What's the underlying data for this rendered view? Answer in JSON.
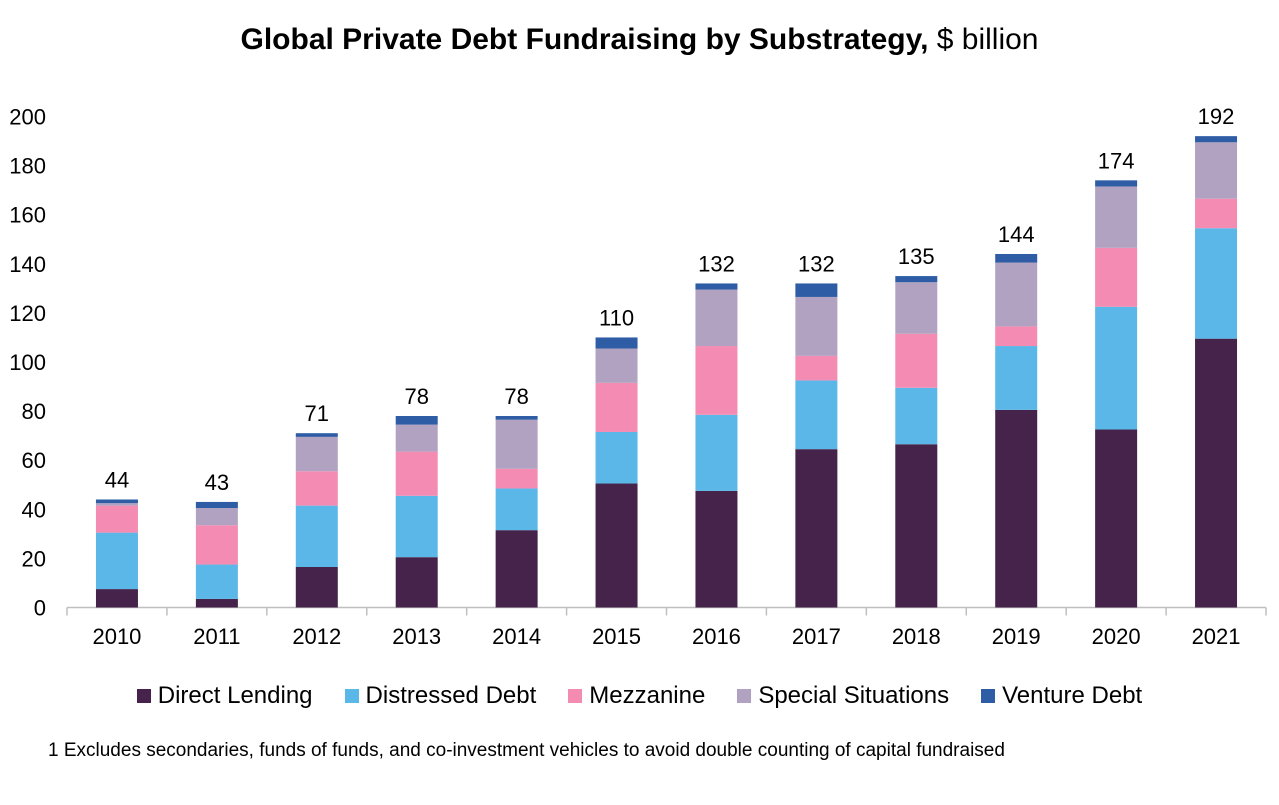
{
  "title": {
    "main": "Global Private Debt Fundraising by Substrategy,",
    "unit": " $ billion"
  },
  "footnote": "1 Excludes secondaries, funds of funds, and co-investment vehicles to avoid double counting of capital fundraised",
  "chart_data": {
    "type": "bar",
    "stacked": true,
    "title": "Global Private Debt Fundraising by Substrategy, $ billion",
    "xlabel": "",
    "ylabel": "",
    "ylim": [
      0,
      200
    ],
    "yticks": [
      "0",
      "20",
      "40",
      "60",
      "80",
      "100",
      "120",
      "140",
      "160",
      "180",
      "200"
    ],
    "grid": false,
    "legend_position": "bottom",
    "categories": [
      "2010",
      "2011",
      "2012",
      "2013",
      "2014",
      "2015",
      "2016",
      "2017",
      "2018",
      "2019",
      "2020",
      "2021"
    ],
    "totals": [
      "44",
      "43",
      "71",
      "78",
      "78",
      "110",
      "132",
      "132",
      "135",
      "144",
      "174",
      "192"
    ],
    "series": [
      {
        "name": "Direct Lending",
        "color": "#45234a",
        "values": [
          7.5,
          3.5,
          16.5,
          20.5,
          31.5,
          50.5,
          47.5,
          64.5,
          66.5,
          80.5,
          72.5,
          109.5
        ]
      },
      {
        "name": "Distressed Debt",
        "color": "#5ab7e8",
        "values": [
          23,
          14,
          25,
          25,
          17,
          21,
          31,
          28,
          23,
          26,
          50,
          45
        ]
      },
      {
        "name": "Mezzanine",
        "color": "#f48bb3",
        "values": [
          11,
          16,
          14,
          18,
          8,
          20,
          28,
          10,
          22,
          8,
          24,
          12
        ]
      },
      {
        "name": "Special Situations",
        "color": "#b1a2c1",
        "values": [
          1,
          7,
          14,
          11,
          20,
          14,
          23,
          24,
          21,
          26,
          25,
          23
        ]
      },
      {
        "name": "Venture Debt",
        "color": "#2f5da5",
        "values": [
          1.5,
          2.5,
          1.5,
          3.5,
          1.5,
          4.5,
          2.5,
          5.5,
          2.5,
          3.5,
          2.5,
          2.5
        ]
      }
    ]
  }
}
